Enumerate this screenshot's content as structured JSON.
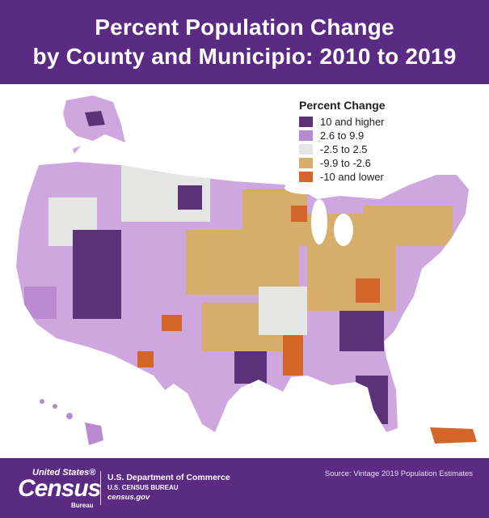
{
  "header": {
    "title_line1": "Percent Population Change",
    "title_line2": "by County and Municipio: 2010 to 2019"
  },
  "legend": {
    "title": "Percent Change",
    "items": [
      {
        "label": "10 and higher",
        "color": "#5c3178"
      },
      {
        "label": "2.6 to 9.9",
        "color": "#b98ad0"
      },
      {
        "label": "-2.5 to 2.5",
        "color": "#e5e5e3"
      },
      {
        "label": "-9.9 to -2.6",
        "color": "#d6ad6b"
      },
      {
        "label": "-10 and lower",
        "color": "#d4652a"
      }
    ]
  },
  "map": {
    "regions": [
      "contiguous-us",
      "alaska",
      "hawaii",
      "puerto-rico"
    ]
  },
  "footer": {
    "logo_top": "United States®",
    "logo_main": "Census",
    "logo_sub": "Bureau",
    "dept_line1": "U.S. Department of Commerce",
    "dept_line2": "U.S. CENSUS BUREAU",
    "dept_line3": "census.gov",
    "source": "Source: Vintage 2019 Population Estimates"
  }
}
